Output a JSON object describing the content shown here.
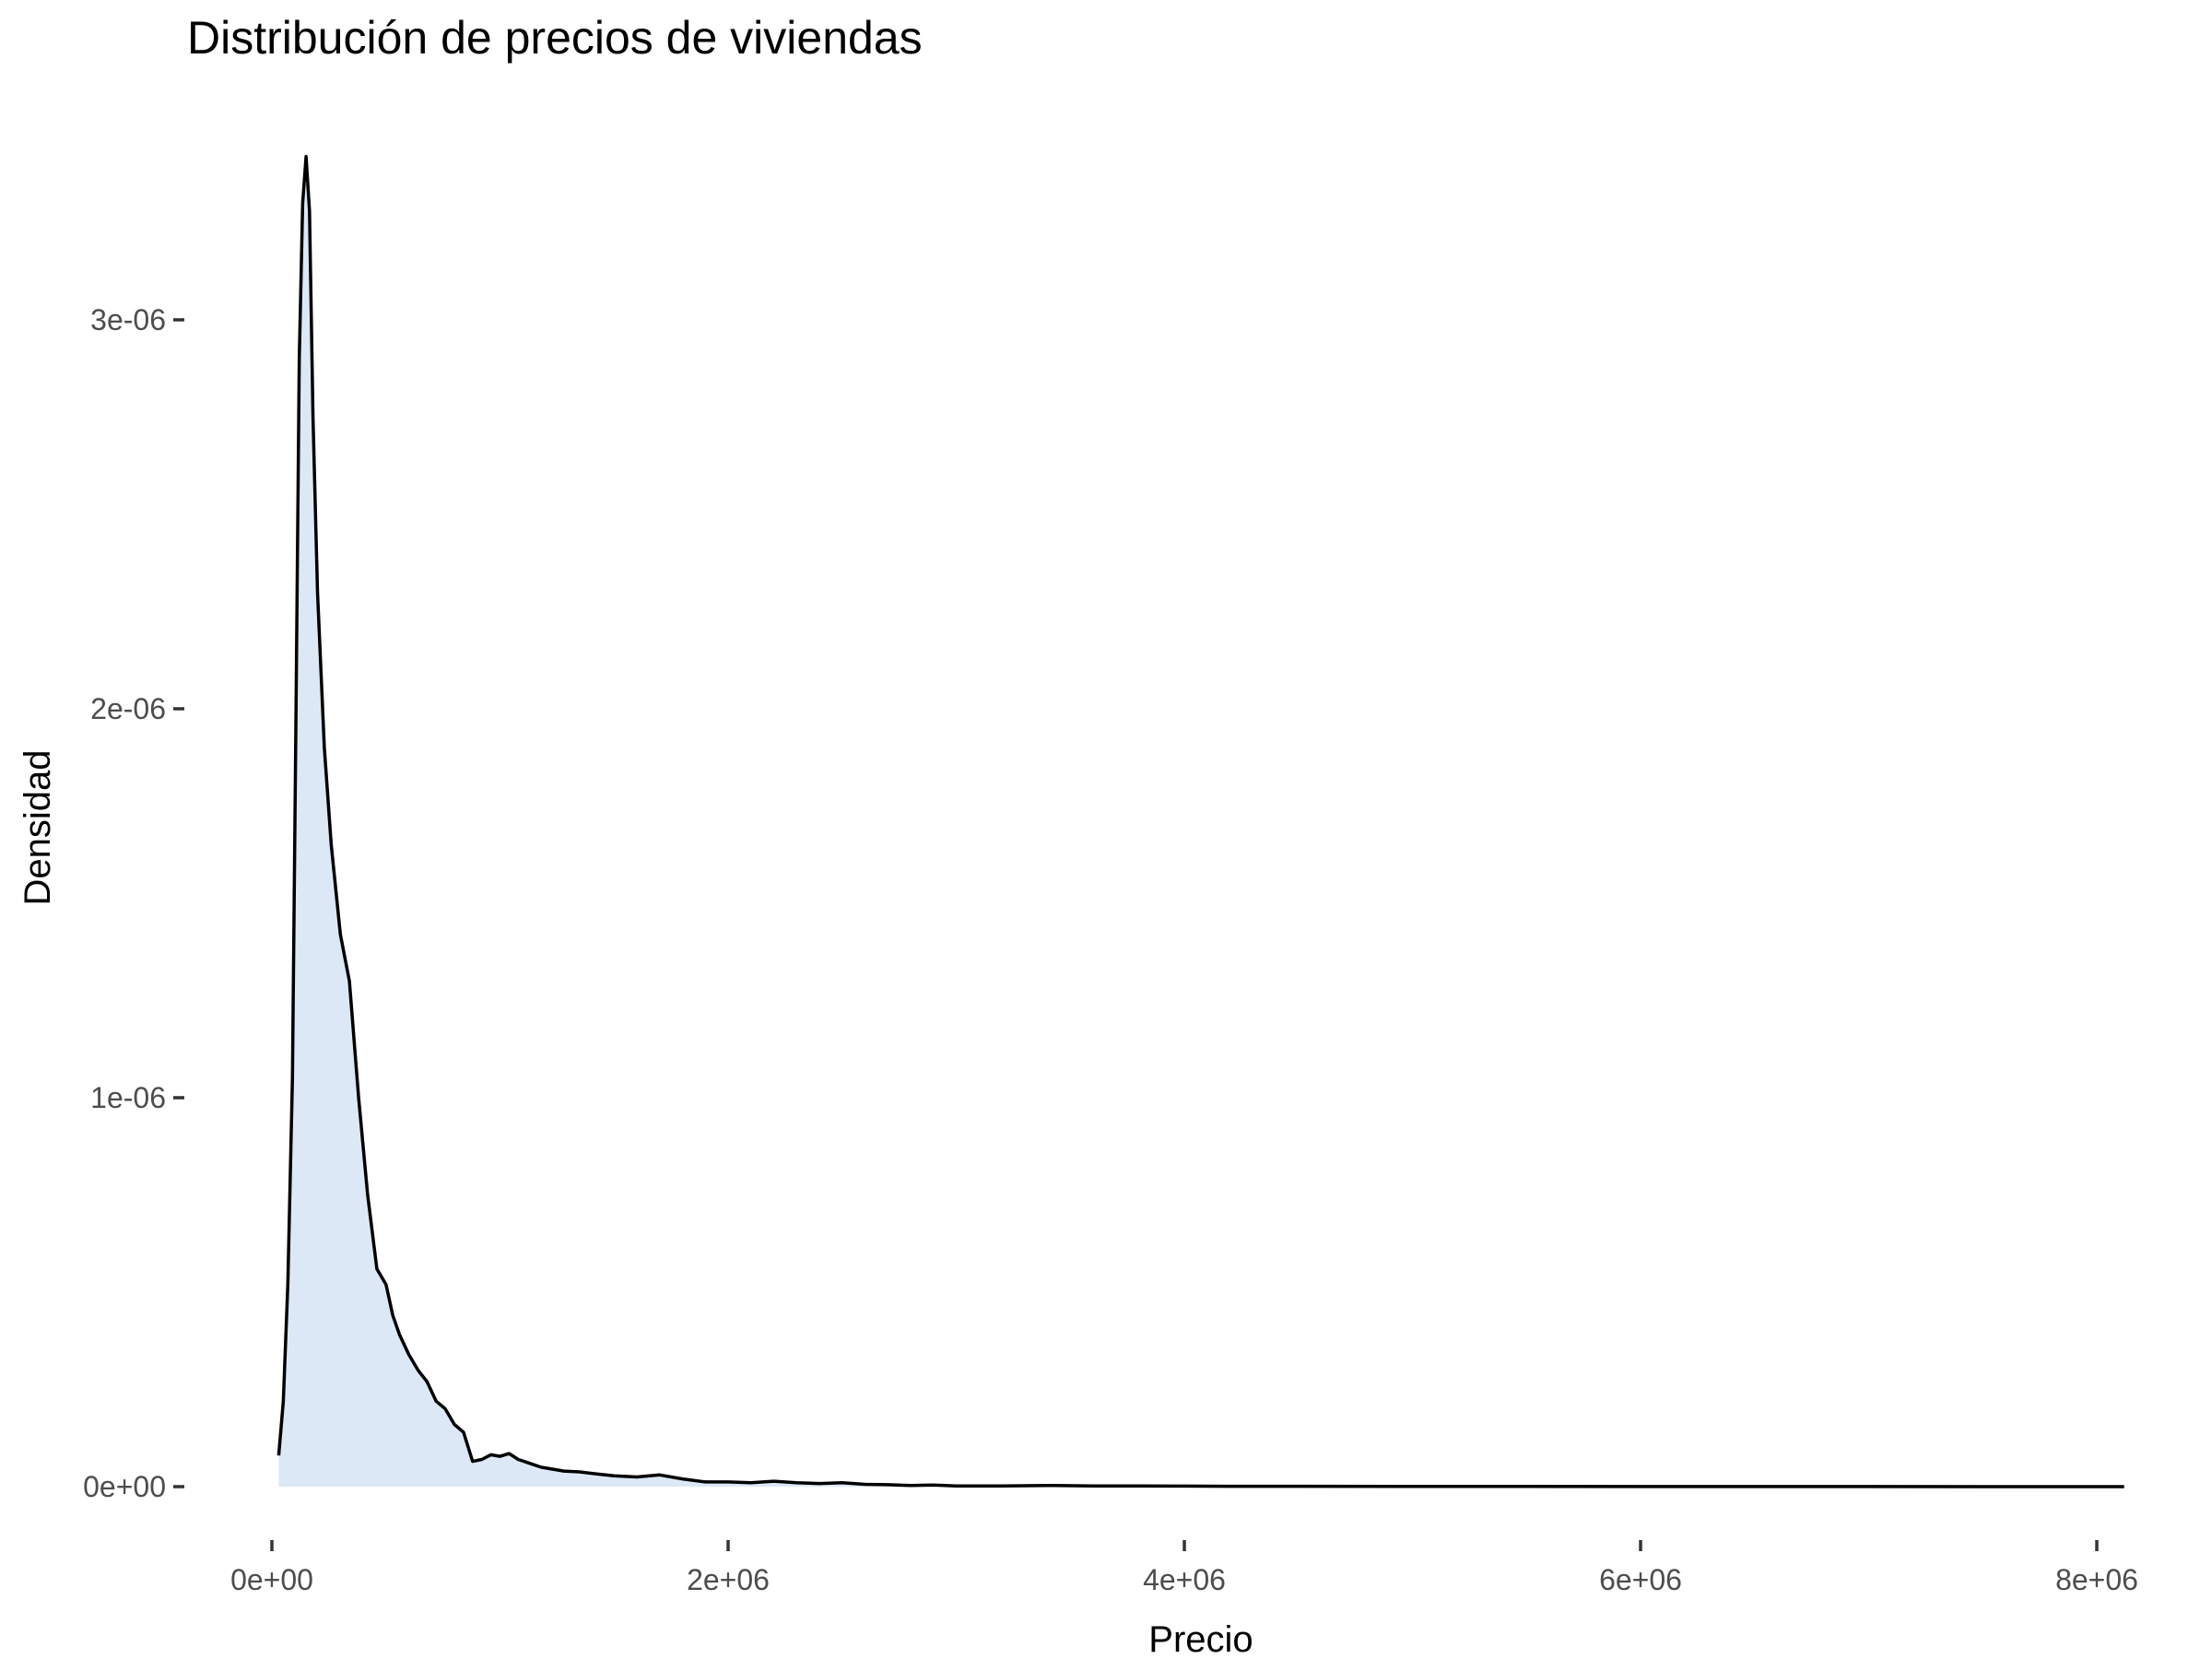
{
  "chart_data": {
    "type": "area",
    "title": "Distribución de precios de viviendas",
    "xlabel": "Precio",
    "ylabel": "Densidad",
    "xlim": [
      0,
      8000000
    ],
    "ylim": [
      0,
      3.4e-06
    ],
    "grid": false,
    "x_ticks": [
      {
        "value": 0,
        "label": "0e+00"
      },
      {
        "value": 2000000,
        "label": "2e+06"
      },
      {
        "value": 4000000,
        "label": "4e+06"
      },
      {
        "value": 6000000,
        "label": "6e+06"
      },
      {
        "value": 8000000,
        "label": "8e+06"
      }
    ],
    "y_ticks": [
      {
        "value": 0,
        "label": "0e+00"
      },
      {
        "value": 1e-06,
        "label": "1e-06"
      },
      {
        "value": 2e-06,
        "label": "2e-06"
      },
      {
        "value": 3e-06,
        "label": "3e-06"
      }
    ],
    "colors": {
      "fill": "#dce8f6",
      "line": "#000000"
    },
    "series": [
      {
        "x": [
          30000,
          50000,
          70000,
          90000,
          105000,
          120000,
          135000,
          150000,
          165000,
          180000,
          200000,
          230000,
          260000,
          300000,
          340000,
          380000,
          420000,
          460000,
          500000,
          530000,
          560000,
          600000,
          640000,
          680000,
          720000,
          760000,
          800000,
          840000,
          880000,
          920000,
          960000,
          1000000,
          1040000,
          1080000,
          1130000,
          1180000,
          1230000,
          1280000,
          1350000,
          1420000,
          1500000,
          1600000,
          1700000,
          1800000,
          1900000,
          2000000,
          2100000,
          2200000,
          2300000,
          2400000,
          2500000,
          2600000,
          2700000,
          2800000,
          2900000,
          3000000,
          3200000,
          3400000,
          3600000,
          3800000,
          4000000,
          4200000,
          4500000,
          5000000,
          5500000,
          6000000,
          6500000,
          7000000,
          7500000,
          8120000
        ],
        "y": [
          8e-08,
          2.2e-07,
          5.2e-07,
          1.05e-06,
          1.95e-06,
          2.9e-06,
          3.3e-06,
          3.42e-06,
          3.28e-06,
          2.75e-06,
          2.3e-06,
          1.9e-06,
          1.65e-06,
          1.42e-06,
          1.3e-06,
          1e-06,
          7.5e-07,
          5.6e-07,
          5.2e-07,
          4.4e-07,
          3.9e-07,
          3.4e-07,
          3e-07,
          2.7e-07,
          2.2e-07,
          2e-07,
          1.6e-07,
          1.4e-07,
          6.5e-08,
          7e-08,
          8.2e-08,
          7.8e-08,
          8.5e-08,
          7e-08,
          6e-08,
          5e-08,
          4.5e-08,
          4e-08,
          3.8e-08,
          3.3e-08,
          2.8e-08,
          2.5e-08,
          3e-08,
          2e-08,
          1.2e-08,
          1.2e-08,
          1e-08,
          1.4e-08,
          1e-08,
          8e-09,
          1e-08,
          6e-09,
          5e-09,
          3e-09,
          4e-09,
          2e-09,
          2e-09,
          3e-09,
          2e-09,
          2e-09,
          1.5e-09,
          1e-09,
          1e-09,
          6e-10,
          5e-10,
          3e-10,
          2e-10,
          2e-10,
          1e-10,
          1e-10
        ]
      }
    ]
  }
}
